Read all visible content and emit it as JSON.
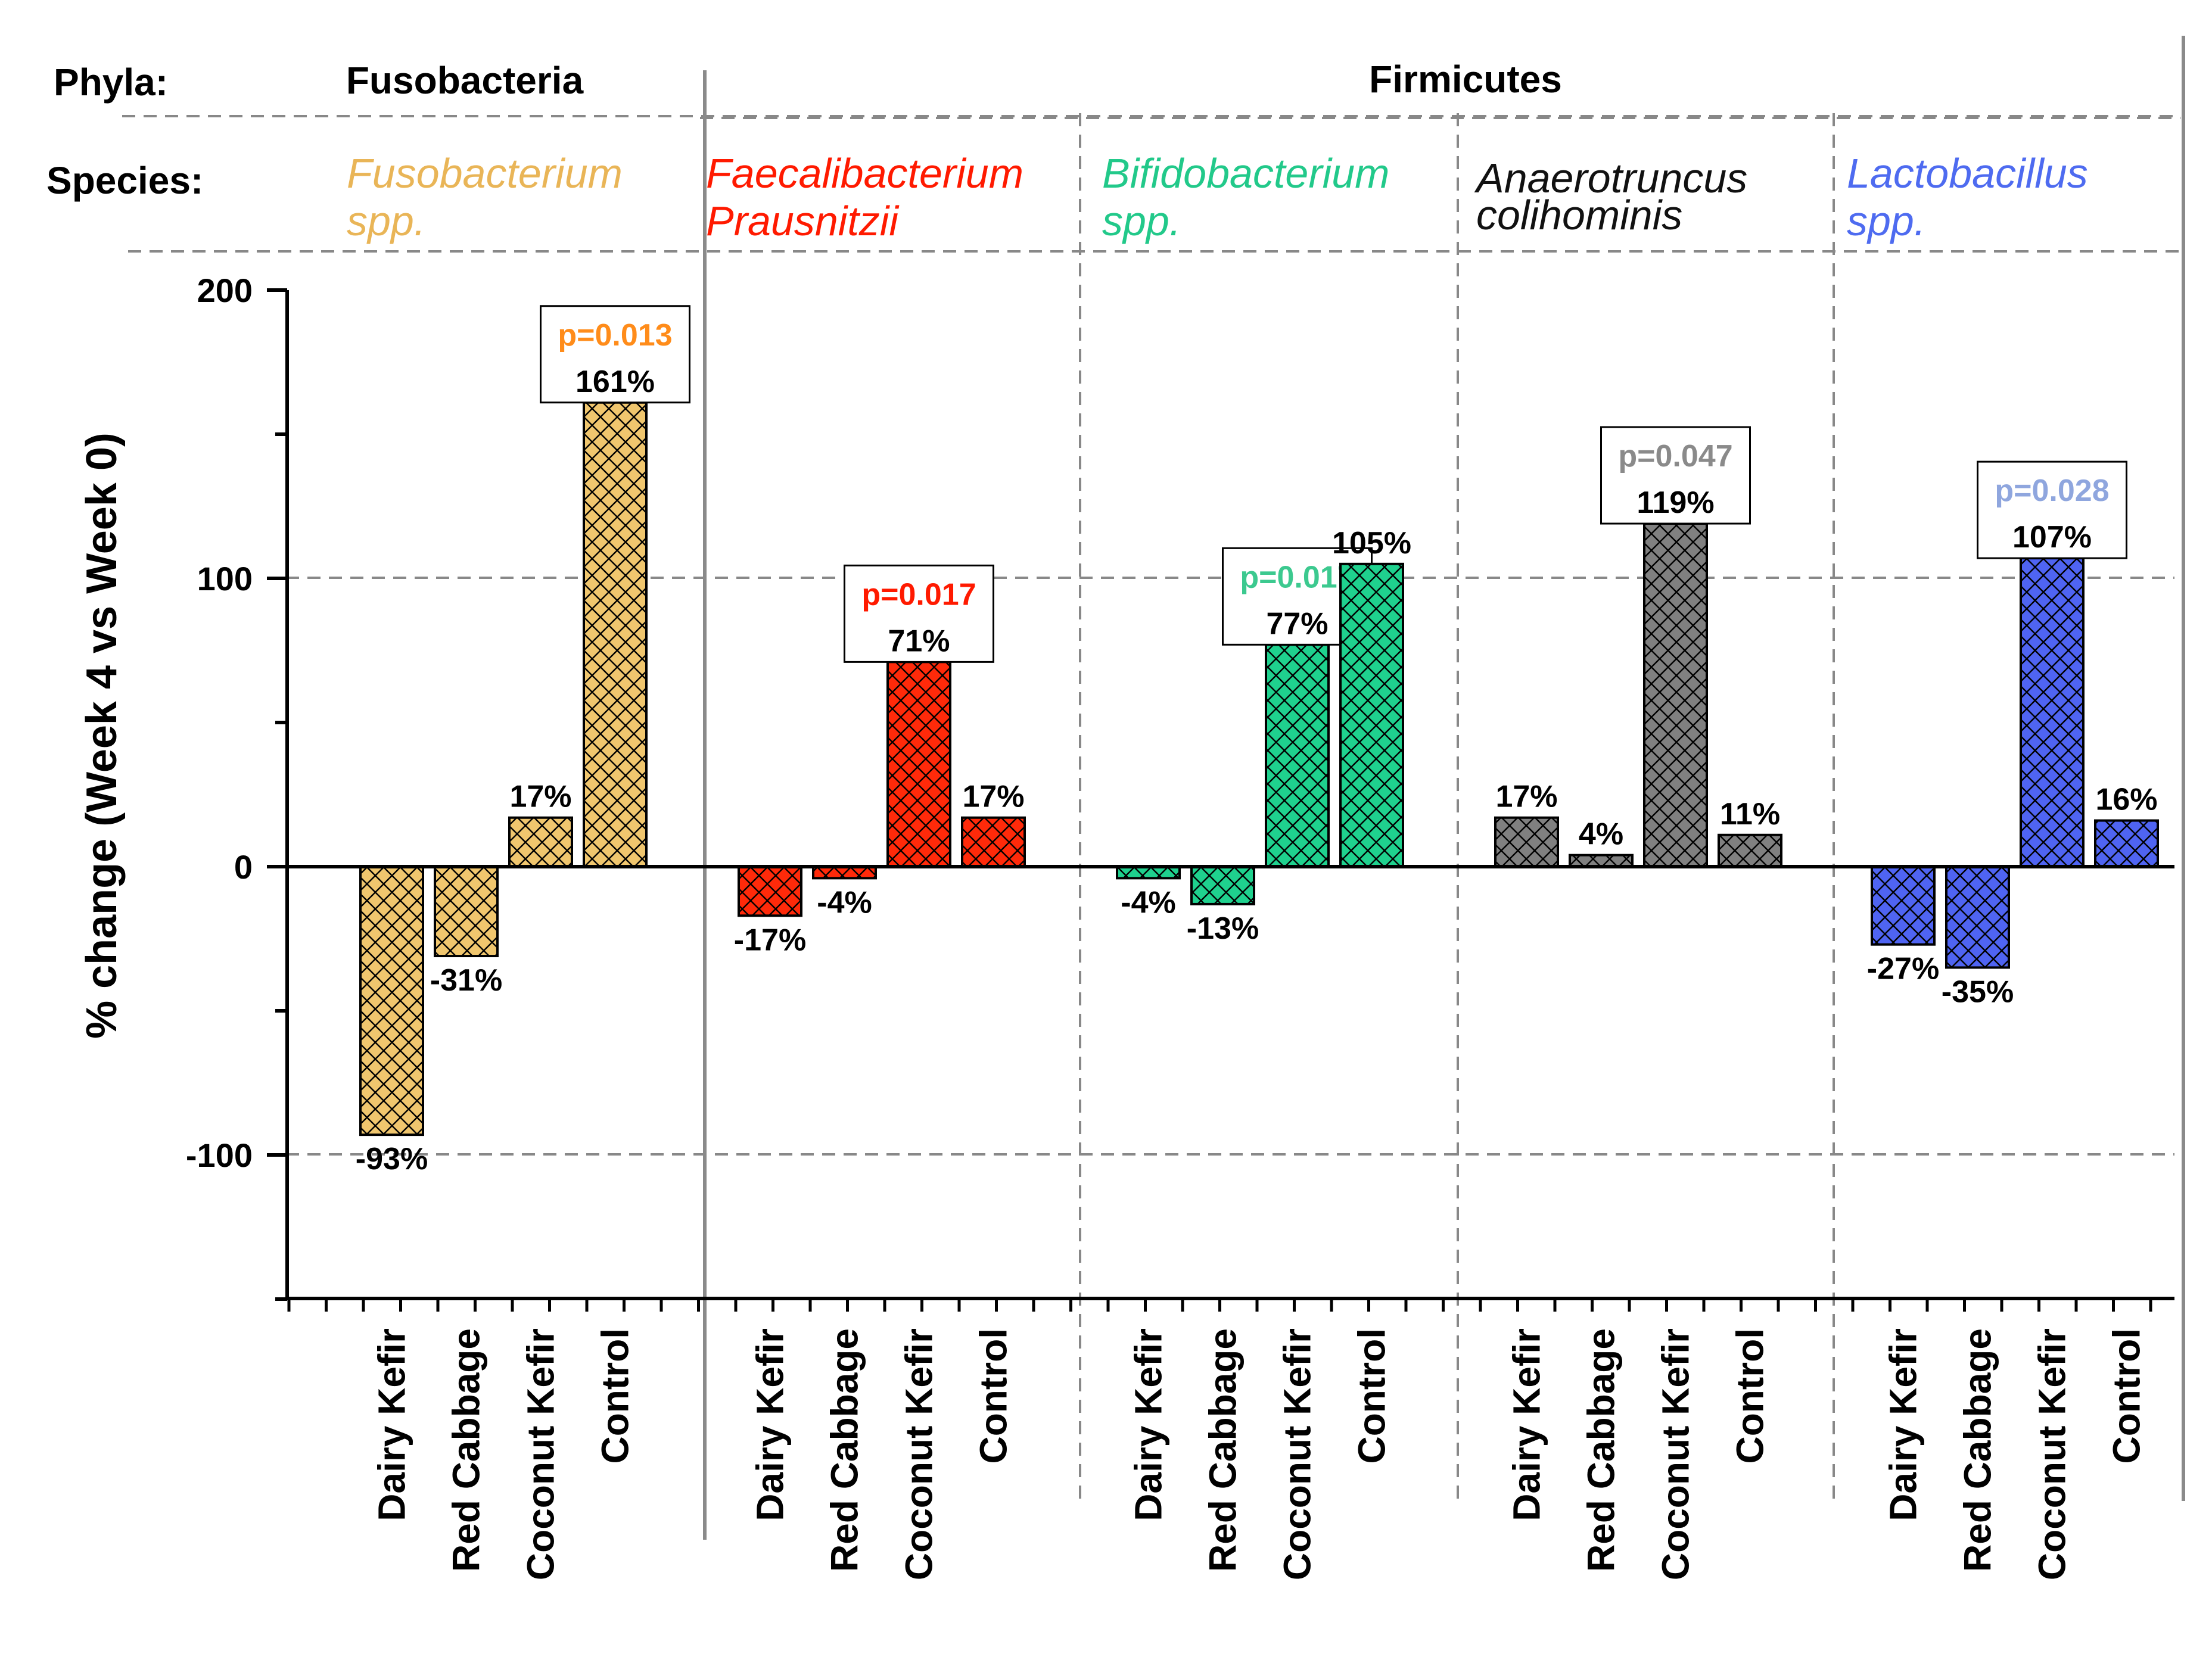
{
  "chart_data": {
    "type": "bar",
    "ylabel": "% change (Week 4 vs Week 0)",
    "ylim": [
      -150,
      200
    ],
    "yticks": [
      -100,
      0,
      100,
      200
    ],
    "grid": true,
    "headers": {
      "phyla_label": "Phyla:",
      "species_label": "Species:"
    },
    "phyla": [
      {
        "name": "Fusobacteria",
        "groups": [
          0
        ]
      },
      {
        "name": "Firmicutes",
        "groups": [
          1,
          2,
          3,
          4
        ]
      }
    ],
    "categories": [
      "Dairy Kefir",
      "Red Cabbage",
      "Coconut Kefir",
      "Control"
    ],
    "groups": [
      {
        "species": [
          "Fusobacterium",
          "spp."
        ],
        "color": "#F0C66E",
        "text_color": "#E9B557",
        "values": [
          -93,
          -31,
          17,
          161
        ],
        "labels": [
          "-93%",
          "-31%",
          "17%",
          "161%"
        ],
        "pvalue": {
          "bar": 3,
          "text": "p=0.013",
          "color": "#FF8C1A"
        }
      },
      {
        "species": [
          "Faecalibacterium",
          "Prausnitzii"
        ],
        "color": "#FF2A0A",
        "text_color": "#FF1A00",
        "values": [
          -17,
          -4,
          71,
          17
        ],
        "labels": [
          "-17%",
          "-4%",
          "71%",
          "17%"
        ],
        "pvalue": {
          "bar": 2,
          "text": "p=0.017",
          "color": "#FF1A00"
        }
      },
      {
        "species": [
          "Bifidobacterium",
          "spp."
        ],
        "color": "#1FD18E",
        "text_color": "#22C98A",
        "values": [
          -4,
          -13,
          77,
          105
        ],
        "labels": [
          "-4%",
          "-13%",
          "77%",
          "105%"
        ],
        "pvalue": {
          "bar": 2,
          "text": "p=0.017",
          "color": "#3CC98F"
        }
      },
      {
        "species": [
          "Anaerotruncus",
          "colihominis"
        ],
        "color": "#808080",
        "text_color": "#111111",
        "values": [
          17,
          4,
          119,
          11
        ],
        "labels": [
          "17%",
          "4%",
          "119%",
          "11%"
        ],
        "pvalue": {
          "bar": 2,
          "text": "p=0.047",
          "color": "#8A8A8A"
        }
      },
      {
        "species": [
          "Lactobacillus",
          "spp."
        ],
        "color": "#4F64F2",
        "text_color": "#4E6BF0",
        "values": [
          -27,
          -35,
          107,
          16
        ],
        "labels": [
          "-27%",
          "-35%",
          "107%",
          "16%"
        ],
        "pvalue": {
          "bar": 2,
          "text": "p=0.028",
          "color": "#8FA6DE"
        }
      }
    ]
  }
}
